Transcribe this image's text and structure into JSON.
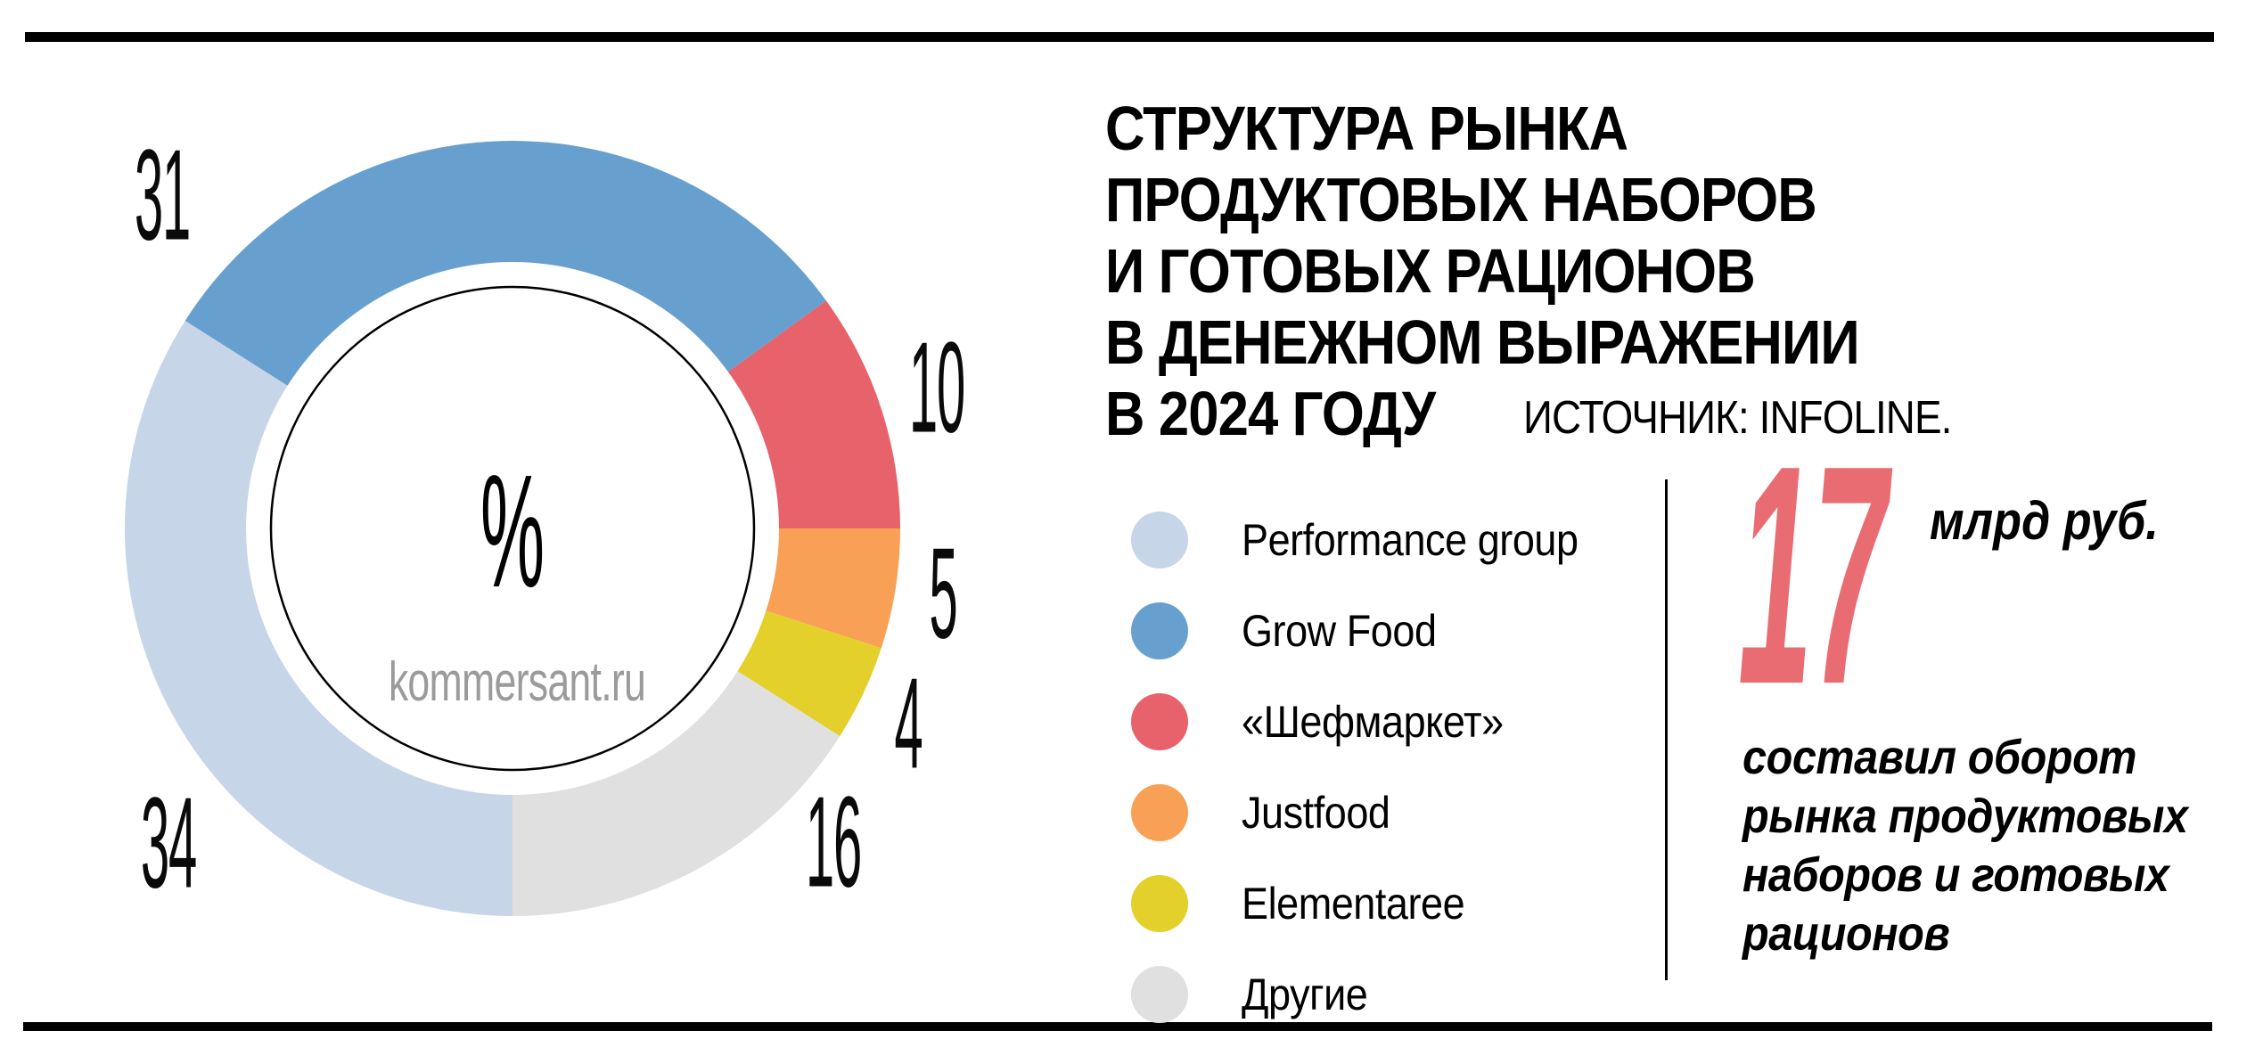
{
  "header": {
    "title": "СТРУКТУРА РЫНКА\nПРОДУКТОВЫХ НАБОРОВ\nИ ГОТОВЫХ РАЦИОНОВ\nВ ДЕНЕЖНОМ ВЫРАЖЕНИИ\nВ 2024 ГОДУ",
    "source": "ИСТОЧНИК: INFOLINE."
  },
  "chart_data": {
    "type": "pie",
    "variant": "donut",
    "unit": "%",
    "center_label": "%",
    "watermark": "kommersant.ru",
    "start_angle_deg": 180,
    "direction": "clockwise",
    "legend_position": "right",
    "series": [
      {
        "name": "Performance group",
        "value": 34,
        "color": "#c7d5e9"
      },
      {
        "name": "Grow Food",
        "value": 31,
        "color": "#67a0cf"
      },
      {
        "name": "«Шефмаркет»",
        "value": 10,
        "color": "#e7626b"
      },
      {
        "name": "Justfood",
        "value": 5,
        "color": "#f8a156"
      },
      {
        "name": "Elementaree",
        "value": 4,
        "color": "#e4d02b"
      },
      {
        "name": "Другие",
        "value": 16,
        "color": "#e0e0e0"
      }
    ]
  },
  "callout": {
    "value": "17",
    "unit": "млрд руб.",
    "description": "составил оборот\nрынка продуктовых\nнаборов и готовых\nрационов",
    "accent_color": "#e96c72"
  }
}
